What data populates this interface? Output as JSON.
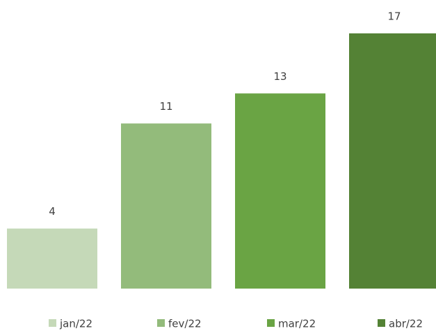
{
  "chart_data": {
    "type": "bar",
    "categories": [
      "jan/22",
      "fev/22",
      "mar/22",
      "abr/22"
    ],
    "values": [
      4,
      11,
      13,
      17
    ],
    "colors": [
      "#c5d9b8",
      "#93bb7b",
      "#6aa444",
      "#548235"
    ],
    "legend": "bottom"
  }
}
